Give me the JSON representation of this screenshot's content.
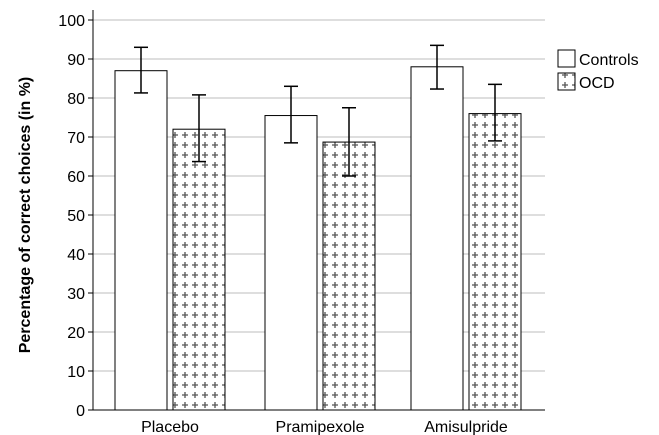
{
  "chart_data": {
    "type": "bar",
    "title": "",
    "xlabel": "",
    "ylabel": "Percentage of correct choices (in %)",
    "ylim": [
      0,
      100
    ],
    "yticks": [
      0,
      10,
      20,
      30,
      40,
      50,
      60,
      70,
      80,
      90,
      100
    ],
    "grid": "horizontal",
    "legend_position": "right",
    "categories": [
      "Placebo",
      "Pramipexole",
      "Amisulpride"
    ],
    "series": [
      {
        "name": "Controls",
        "fill": "plain",
        "values": [
          87,
          75.5,
          88
        ],
        "error_low": [
          81.3,
          68.5,
          82.3
        ],
        "error_high": [
          93,
          83,
          93.5
        ]
      },
      {
        "name": "OCD",
        "fill": "cross-hatch",
        "values": [
          72,
          68.7,
          76
        ],
        "error_low": [
          63.7,
          60,
          69
        ],
        "error_high": [
          80.8,
          77.5,
          83.5
        ]
      }
    ],
    "colors": {
      "bar_fill": "#ffffff",
      "bar_stroke": "#000000",
      "grid": "#bdbdbd",
      "pattern": "#555555",
      "axis": "#000000"
    }
  }
}
